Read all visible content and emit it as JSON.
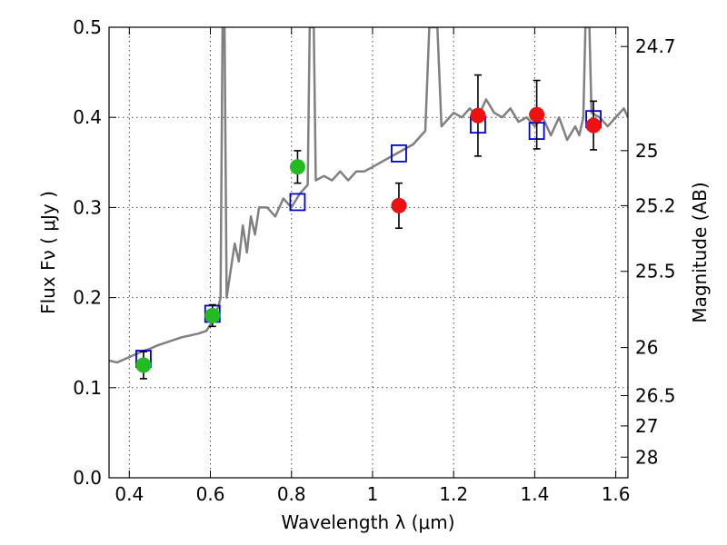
{
  "chart_data": {
    "type": "scatter",
    "title": "",
    "xlabel": "Wavelength  λ (μm)",
    "ylabel": "Flux  Fν  ( μJy )",
    "y2label": "Magnitude (AB)",
    "xlim": [
      0.35,
      1.63
    ],
    "ylim": [
      0.0,
      0.5
    ],
    "grid": true,
    "xticks": [
      0.4,
      0.6,
      0.8,
      1.0,
      1.2,
      1.4,
      1.6
    ],
    "xtick_labels": [
      "0.4",
      "0.6",
      "0.8",
      "1",
      "1.2",
      "1.4",
      "1.6"
    ],
    "yticks": [
      0.0,
      0.1,
      0.2,
      0.3,
      0.4,
      0.5
    ],
    "ytick_labels": [
      "0.0",
      "0.1",
      "0.2",
      "0.3",
      "0.4",
      "0.5"
    ],
    "mag_ticks": [
      24.7,
      25,
      25.2,
      25.5,
      26,
      26.5,
      27,
      28
    ],
    "mag_tick_labels": [
      "24.7",
      "25",
      "25.2",
      "25.5",
      "26",
      "26.5",
      "27",
      "28"
    ],
    "colors": {
      "model": "#808080",
      "green": "#22bb22",
      "red": "#ee1111",
      "square": "#0000cc",
      "error": "#000000"
    },
    "series": [
      {
        "kind": "line",
        "x": [
          0.35,
          0.37,
          0.39,
          0.41,
          0.43,
          0.45,
          0.47,
          0.49,
          0.51,
          0.53,
          0.55,
          0.57,
          0.59,
          0.6,
          0.61,
          0.62,
          0.625,
          0.63,
          0.635,
          0.64,
          0.65,
          0.66,
          0.67,
          0.68,
          0.69,
          0.7,
          0.71,
          0.72,
          0.74,
          0.76,
          0.78,
          0.8,
          0.82,
          0.84,
          0.845,
          0.85,
          0.855,
          0.86,
          0.88,
          0.9,
          0.92,
          0.94,
          0.96,
          0.98,
          1.0,
          1.02,
          1.04,
          1.06,
          1.08,
          1.1,
          1.12,
          1.13,
          1.14,
          1.15,
          1.16,
          1.17,
          1.18,
          1.19,
          1.2,
          1.22,
          1.24,
          1.26,
          1.28,
          1.3,
          1.32,
          1.34,
          1.36,
          1.38,
          1.4,
          1.42,
          1.44,
          1.46,
          1.48,
          1.5,
          1.51,
          1.52,
          1.525,
          1.53,
          1.535,
          1.54,
          1.56,
          1.58,
          1.6,
          1.62,
          1.63
        ],
        "y": [
          0.13,
          0.128,
          0.132,
          0.136,
          0.14,
          0.143,
          0.147,
          0.15,
          0.153,
          0.156,
          0.158,
          0.16,
          0.163,
          0.17,
          0.182,
          0.19,
          0.2,
          0.5,
          0.5,
          0.2,
          0.23,
          0.26,
          0.24,
          0.28,
          0.25,
          0.29,
          0.27,
          0.3,
          0.3,
          0.29,
          0.31,
          0.3,
          0.315,
          0.325,
          0.5,
          0.5,
          0.5,
          0.33,
          0.335,
          0.33,
          0.34,
          0.33,
          0.34,
          0.34,
          0.345,
          0.35,
          0.355,
          0.36,
          0.365,
          0.37,
          0.38,
          0.385,
          0.5,
          0.5,
          0.5,
          0.39,
          0.395,
          0.4,
          0.405,
          0.4,
          0.41,
          0.4,
          0.42,
          0.405,
          0.4,
          0.41,
          0.395,
          0.4,
          0.39,
          0.4,
          0.38,
          0.4,
          0.375,
          0.39,
          0.38,
          0.4,
          0.5,
          0.5,
          0.5,
          0.405,
          0.4,
          0.39,
          0.4,
          0.41,
          0.4
        ]
      },
      {
        "kind": "square",
        "x": [
          0.435,
          0.605,
          0.815,
          1.065,
          1.26,
          1.405,
          1.545
        ],
        "y": [
          0.132,
          0.182,
          0.306,
          0.36,
          0.392,
          0.385,
          0.398
        ]
      },
      {
        "kind": "point-green",
        "x": [
          0.435,
          0.605,
          0.815
        ],
        "y": [
          0.125,
          0.18,
          0.345
        ],
        "yerr": [
          0.015,
          0.012,
          0.018
        ]
      },
      {
        "kind": "point-red",
        "x": [
          1.065,
          1.26,
          1.405,
          1.545
        ],
        "y": [
          0.302,
          0.402,
          0.403,
          0.391
        ],
        "yerr": [
          0.025,
          0.045,
          0.038,
          0.027
        ]
      }
    ]
  }
}
